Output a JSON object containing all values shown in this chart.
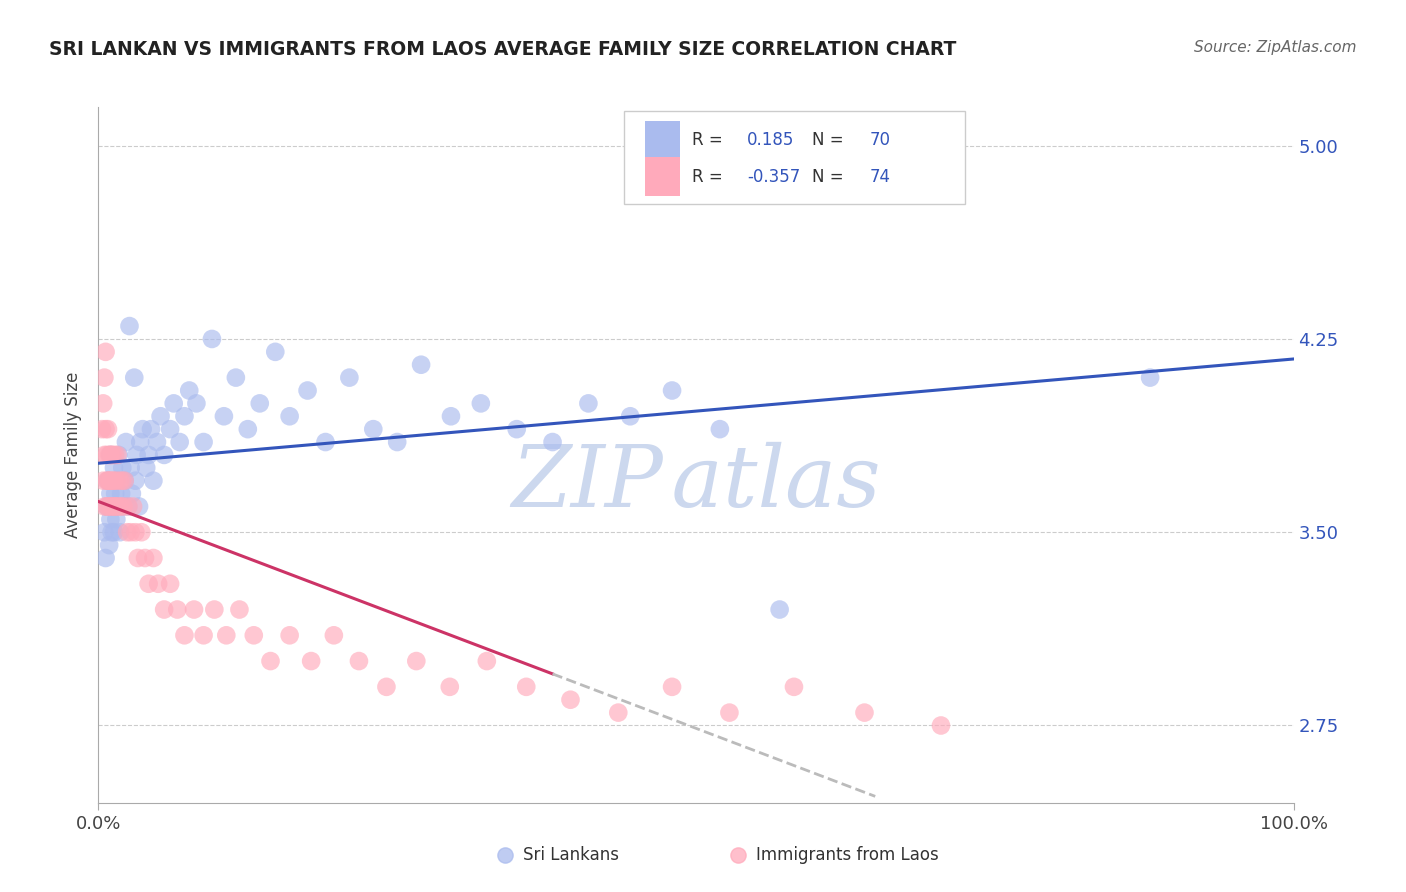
{
  "title": "SRI LANKAN VS IMMIGRANTS FROM LAOS AVERAGE FAMILY SIZE CORRELATION CHART",
  "source": "Source: ZipAtlas.com",
  "ylabel": "Average Family Size",
  "xlim": [
    0,
    1.0
  ],
  "ylim": [
    2.45,
    5.15
  ],
  "yticks_right": [
    2.75,
    3.5,
    4.25,
    5.0
  ],
  "ytick_labels": [
    "2.75",
    "3.50",
    "4.25",
    "5.00"
  ],
  "xticklabels": [
    "0.0%",
    "100.0%"
  ],
  "background_color": "#ffffff",
  "grid_color": "#cccccc",
  "sri_lankans_R": 0.185,
  "sri_lankans_N": 70,
  "laos_R": -0.357,
  "laos_N": 74,
  "blue_color": "#aabbee",
  "pink_color": "#ffaabb",
  "blue_line_color": "#3355bb",
  "pink_line_color": "#cc3366",
  "watermark_color": "#ccd8ee",
  "legend_text_color": "#3355bb",
  "legend_label_color": "#333333",
  "sri_lankans_x": [
    0.005,
    0.006,
    0.007,
    0.008,
    0.009,
    0.01,
    0.01,
    0.01,
    0.011,
    0.012,
    0.013,
    0.013,
    0.014,
    0.015,
    0.015,
    0.016,
    0.017,
    0.018,
    0.019,
    0.02,
    0.021,
    0.022,
    0.023,
    0.025,
    0.026,
    0.027,
    0.028,
    0.03,
    0.031,
    0.032,
    0.034,
    0.035,
    0.037,
    0.04,
    0.042,
    0.044,
    0.046,
    0.049,
    0.052,
    0.055,
    0.06,
    0.063,
    0.068,
    0.072,
    0.076,
    0.082,
    0.088,
    0.095,
    0.105,
    0.115,
    0.125,
    0.135,
    0.148,
    0.16,
    0.175,
    0.19,
    0.21,
    0.23,
    0.25,
    0.27,
    0.295,
    0.32,
    0.35,
    0.38,
    0.41,
    0.445,
    0.48,
    0.52,
    0.57,
    0.88
  ],
  "sri_lankans_y": [
    3.5,
    3.4,
    3.6,
    3.7,
    3.45,
    3.8,
    3.55,
    3.65,
    3.5,
    3.6,
    3.75,
    3.5,
    3.65,
    3.55,
    3.7,
    3.6,
    3.8,
    3.5,
    3.65,
    3.75,
    3.6,
    3.7,
    3.85,
    3.6,
    4.3,
    3.75,
    3.65,
    4.1,
    3.7,
    3.8,
    3.6,
    3.85,
    3.9,
    3.75,
    3.8,
    3.9,
    3.7,
    3.85,
    3.95,
    3.8,
    3.9,
    4.0,
    3.85,
    3.95,
    4.05,
    4.0,
    3.85,
    4.25,
    3.95,
    4.1,
    3.9,
    4.0,
    4.2,
    3.95,
    4.05,
    3.85,
    4.1,
    3.9,
    3.85,
    4.15,
    3.95,
    4.0,
    3.9,
    3.85,
    4.0,
    3.95,
    4.05,
    3.9,
    3.2,
    4.1
  ],
  "laos_x": [
    0.003,
    0.004,
    0.004,
    0.005,
    0.005,
    0.005,
    0.006,
    0.006,
    0.007,
    0.007,
    0.007,
    0.008,
    0.008,
    0.008,
    0.009,
    0.009,
    0.01,
    0.01,
    0.01,
    0.011,
    0.011,
    0.012,
    0.012,
    0.013,
    0.013,
    0.014,
    0.014,
    0.015,
    0.015,
    0.016,
    0.017,
    0.018,
    0.019,
    0.02,
    0.021,
    0.022,
    0.024,
    0.025,
    0.027,
    0.029,
    0.031,
    0.033,
    0.036,
    0.039,
    0.042,
    0.046,
    0.05,
    0.055,
    0.06,
    0.066,
    0.072,
    0.08,
    0.088,
    0.097,
    0.107,
    0.118,
    0.13,
    0.144,
    0.16,
    0.178,
    0.197,
    0.218,
    0.241,
    0.266,
    0.294,
    0.325,
    0.358,
    0.395,
    0.435,
    0.48,
    0.528,
    0.582,
    0.641,
    0.705
  ],
  "laos_y": [
    3.9,
    4.0,
    3.7,
    4.1,
    3.8,
    3.6,
    3.9,
    4.2,
    3.7,
    3.6,
    3.8,
    3.9,
    3.7,
    3.6,
    3.8,
    3.7,
    3.6,
    3.8,
    3.7,
    3.6,
    3.8,
    3.7,
    3.8,
    3.6,
    3.7,
    3.8,
    3.6,
    3.7,
    3.6,
    3.8,
    3.6,
    3.7,
    3.6,
    3.7,
    3.6,
    3.7,
    3.5,
    3.6,
    3.5,
    3.6,
    3.5,
    3.4,
    3.5,
    3.4,
    3.3,
    3.4,
    3.3,
    3.2,
    3.3,
    3.2,
    3.1,
    3.2,
    3.1,
    3.2,
    3.1,
    3.2,
    3.1,
    3.0,
    3.1,
    3.0,
    3.1,
    3.0,
    2.9,
    3.0,
    2.9,
    3.0,
    2.9,
    2.85,
    2.8,
    2.9,
    2.8,
    2.9,
    2.8,
    2.75
  ]
}
